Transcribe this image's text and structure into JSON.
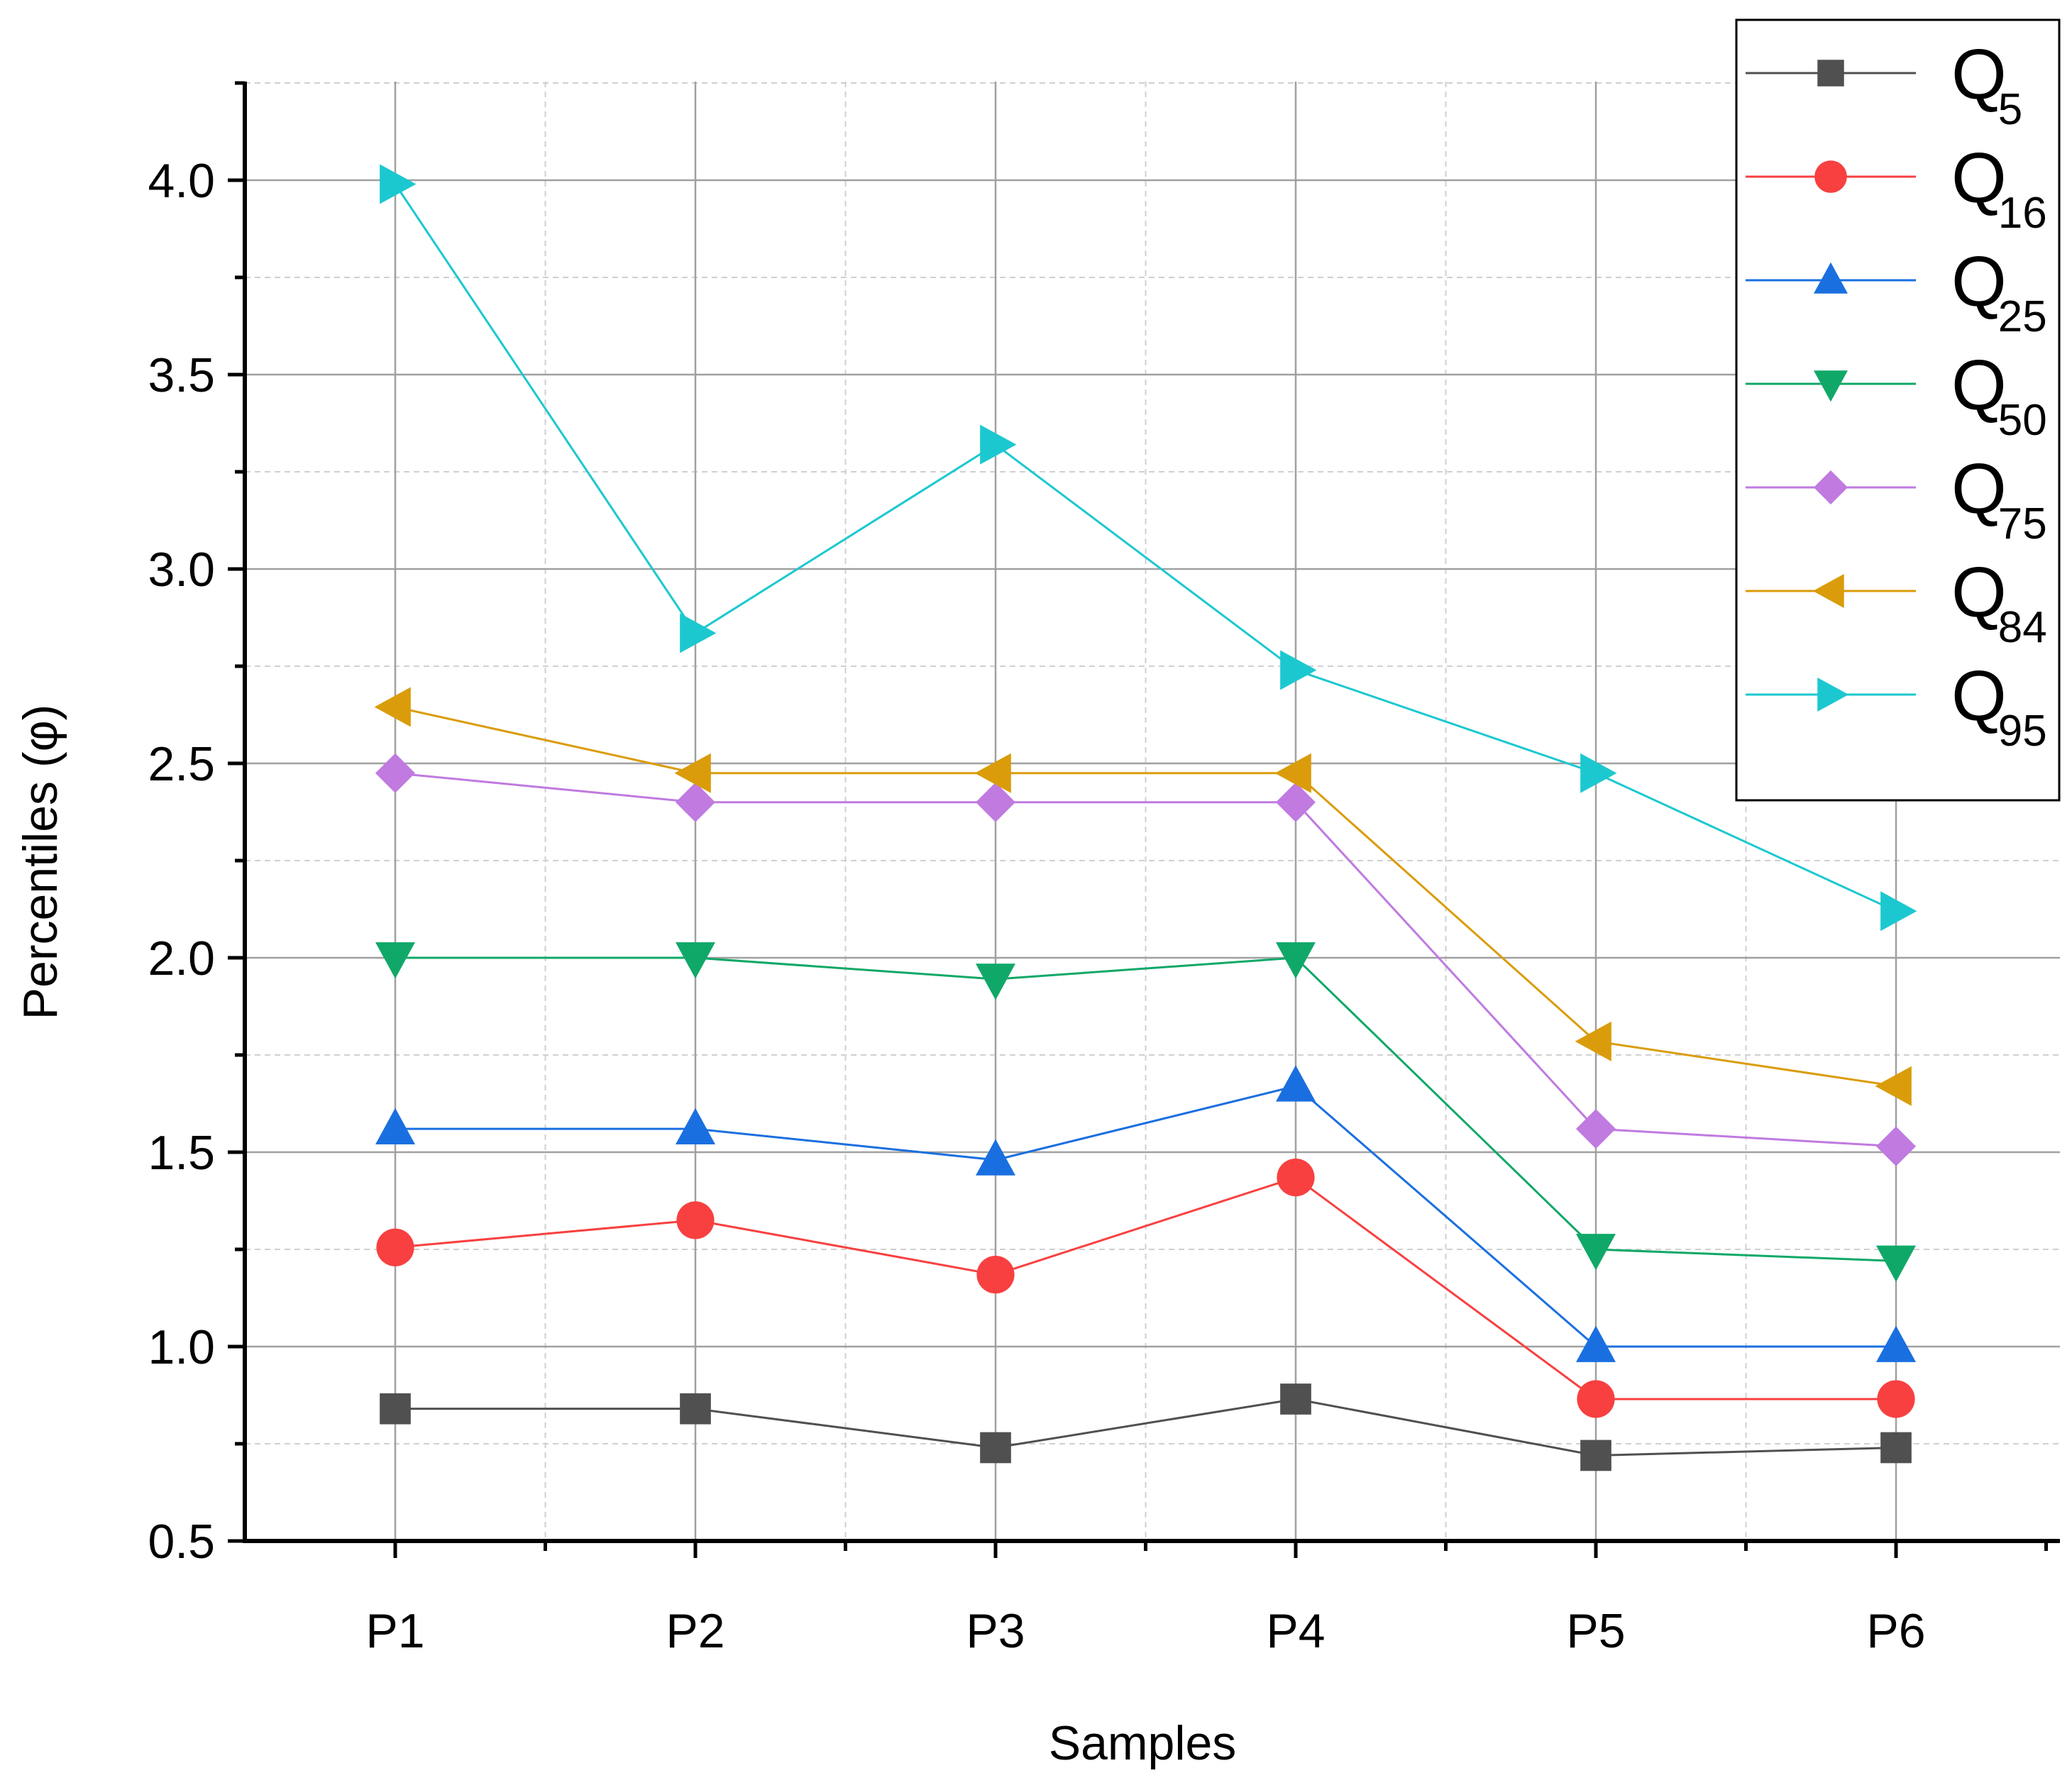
{
  "chart_data": {
    "type": "line",
    "title": "",
    "xlabel": "Samples",
    "ylabel": "Percentiles (φ)",
    "categories": [
      "P1",
      "P2",
      "P3",
      "P4",
      "P5",
      "P6"
    ],
    "ylim": [
      0.5,
      4.25
    ],
    "yticks": [
      "0.5",
      "1.0",
      "1.5",
      "2.0",
      "2.5",
      "3.0",
      "3.5",
      "4.0"
    ],
    "grid": true,
    "legend_position": "top-right",
    "series": [
      {
        "name": "Q",
        "subscript": "5",
        "color": "#505050",
        "marker": "square",
        "values": [
          0.84,
          0.84,
          0.74,
          0.865,
          0.72,
          0.74
        ]
      },
      {
        "name": "Q",
        "subscript": "16",
        "color": "#f84040",
        "marker": "circle",
        "values": [
          1.255,
          1.325,
          1.185,
          1.435,
          0.865,
          0.865
        ]
      },
      {
        "name": "Q",
        "subscript": "25",
        "color": "#1a6fe0",
        "marker": "triangle-up",
        "values": [
          1.56,
          1.56,
          1.48,
          1.67,
          1.0,
          1.0
        ]
      },
      {
        "name": "Q",
        "subscript": "50",
        "color": "#10a868",
        "marker": "triangle-down",
        "values": [
          2.0,
          2.0,
          1.945,
          2.0,
          1.25,
          1.22
        ]
      },
      {
        "name": "Q",
        "subscript": "75",
        "color": "#c07ae0",
        "marker": "diamond",
        "values": [
          2.475,
          2.4,
          2.4,
          2.4,
          1.56,
          1.515
        ]
      },
      {
        "name": "Q",
        "subscript": "84",
        "color": "#da9c0a",
        "marker": "triangle-left",
        "values": [
          2.645,
          2.475,
          2.475,
          2.475,
          1.785,
          1.67
        ]
      },
      {
        "name": "Q",
        "subscript": "95",
        "color": "#1cc8d0",
        "marker": "triangle-right",
        "values": [
          3.99,
          2.835,
          3.32,
          2.74,
          2.475,
          2.12
        ]
      }
    ]
  }
}
